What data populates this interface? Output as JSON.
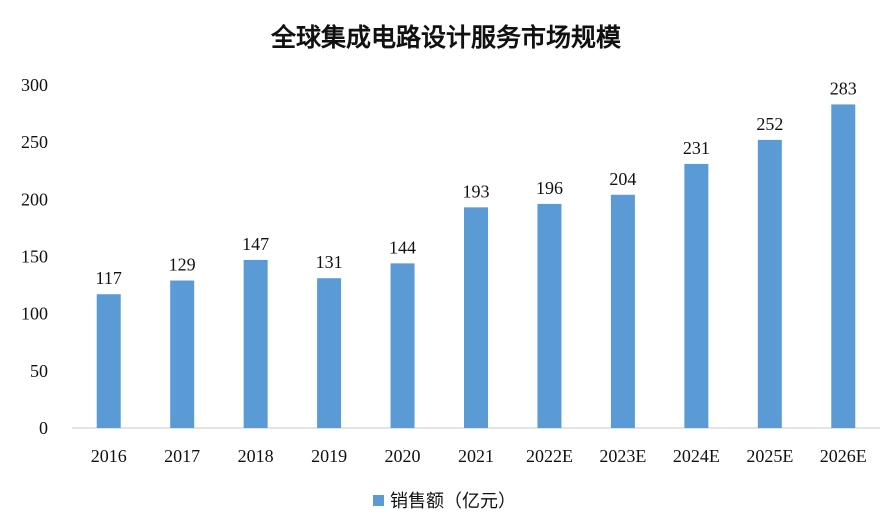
{
  "chart_data": {
    "type": "bar",
    "title": "全球集成电路设计服务市场规模",
    "xlabel": "",
    "ylabel": "",
    "ylim": [
      0,
      300
    ],
    "yticks": [
      0,
      50,
      100,
      150,
      200,
      250,
      300
    ],
    "categories": [
      "2016",
      "2017",
      "2018",
      "2019",
      "2020",
      "2021",
      "2022E",
      "2023E",
      "2024E",
      "2025E",
      "2026E"
    ],
    "series": [
      {
        "name": "销售额（亿元）",
        "values": [
          117,
          129,
          147,
          131,
          144,
          193,
          196,
          204,
          231,
          252,
          283
        ],
        "color": "#5B9BD5"
      }
    ],
    "legend": "bottom-center",
    "grid": false
  }
}
